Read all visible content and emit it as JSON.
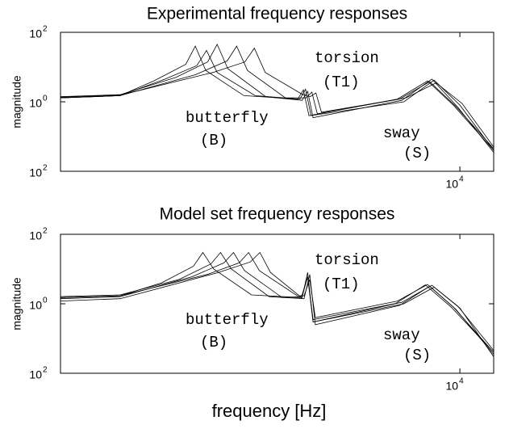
{
  "chart_data": [
    {
      "type": "line",
      "title": "Experimental frequency responses",
      "ylabel": "magnitude",
      "log_x": true,
      "log_y": true,
      "grid": false,
      "xlim": [
        1160,
        12000
      ],
      "ylim": [
        0.01,
        100
      ],
      "xticks": [
        {
          "value": 10000,
          "label": "10",
          "exponent": "4"
        }
      ],
      "yticks": [
        {
          "value": 100,
          "label": "10",
          "exponent": "2"
        },
        {
          "value": 1,
          "label": "10",
          "exponent": "0"
        },
        {
          "value": 0.01,
          "label": "10",
          "exponent": "2"
        }
      ],
      "annotations": [
        {
          "text": "torsion"
        },
        {
          "text": "(T1)"
        },
        {
          "text": "butterfly"
        },
        {
          "text": "(B)"
        },
        {
          "text": "sway"
        },
        {
          "text": "(S)"
        }
      ],
      "series": [
        {
          "color": "#000",
          "x": [
            1160,
            1600,
            1920,
            2280,
            2400,
            2540,
            3120,
            4170,
            4300,
            4430,
            7140,
            8400,
            9660,
            12000
          ],
          "values": [
            1.3,
            1.5,
            4,
            12,
            40,
            8,
            1.5,
            1.2,
            2.2,
            0.4,
            1.2,
            4,
            0.8,
            0.04
          ]
        },
        {
          "color": "#000",
          "x": [
            1160,
            1600,
            2160,
            2565,
            2700,
            2860,
            3510,
            4270,
            4400,
            4530,
            7310,
            8600,
            9890,
            12000
          ],
          "values": [
            1.4,
            1.6,
            5,
            14,
            45,
            9,
            1.4,
            1.1,
            2,
            0.35,
            1.1,
            4.5,
            0.7,
            0.035
          ]
        },
        {
          "color": "#000",
          "x": [
            1160,
            1600,
            2400,
            2850,
            3000,
            3180,
            3900,
            4365,
            4500,
            4635,
            7480,
            8800,
            10120,
            12000
          ],
          "values": [
            1.3,
            1.5,
            6,
            15,
            40,
            8,
            1.3,
            1.3,
            1.9,
            0.45,
            1.3,
            3.5,
            0.9,
            0.05
          ]
        },
        {
          "color": "#000",
          "x": [
            1160,
            1600,
            2640,
            3135,
            3300,
            3500,
            4290,
            4460,
            4600,
            4740,
            7225,
            8500,
            9775,
            12000
          ],
          "values": [
            1.35,
            1.55,
            7,
            14,
            35,
            7,
            1.6,
            1.4,
            1.8,
            0.5,
            1.2,
            3.8,
            0.75,
            0.045
          ]
        },
        {
          "color": "#000",
          "x": [
            1160,
            1600,
            2040,
            2420,
            2550,
            2700,
            3315,
            4220,
            4350,
            4480,
            7395,
            8700,
            10005,
            12000
          ],
          "values": [
            1.3,
            1.5,
            4.5,
            11,
            30,
            7,
            1.5,
            1.2,
            2.3,
            0.4,
            1,
            4.2,
            0.8,
            0.04
          ]
        }
      ]
    },
    {
      "type": "line",
      "title": "Model set frequency responses",
      "ylabel": "magnitude",
      "xlabel": "frequency [Hz]",
      "log_x": true,
      "log_y": true,
      "grid": false,
      "xlim": [
        1160,
        12000
      ],
      "ylim": [
        0.01,
        100
      ],
      "xticks": [
        {
          "value": 10000,
          "label": "10",
          "exponent": "4"
        }
      ],
      "yticks": [
        {
          "value": 100,
          "label": "10",
          "exponent": "2"
        },
        {
          "value": 1,
          "label": "10",
          "exponent": "0"
        },
        {
          "value": 0.01,
          "label": "10",
          "exponent": "2"
        }
      ],
      "annotations": [
        {
          "text": "torsion"
        },
        {
          "text": "(T1)"
        },
        {
          "text": "butterfly"
        },
        {
          "text": "(B)"
        },
        {
          "text": "sway"
        },
        {
          "text": "(S)"
        }
      ],
      "series": [
        {
          "color": "#000",
          "x": [
            1160,
            1600,
            2000,
            2375,
            2500,
            2650,
            3250,
            4270,
            4400,
            4530,
            7055,
            8300,
            9545,
            12000
          ],
          "values": [
            1.5,
            1.7,
            4,
            12,
            30,
            10,
            1.8,
            1.5,
            8,
            0.3,
            1,
            3.5,
            0.8,
            0.04
          ]
        },
        {
          "color": "#000",
          "x": [
            1160,
            1600,
            2200,
            2610,
            2750,
            2915,
            3575,
            4315,
            4450,
            4585,
            7225,
            8500,
            9775,
            12000
          ],
          "values": [
            1.6,
            1.8,
            5,
            14,
            30,
            10,
            1.6,
            1.4,
            7,
            0.25,
            0.9,
            3.2,
            0.7,
            0.035
          ]
        },
        {
          "color": "#000",
          "x": [
            1160,
            1600,
            2360,
            2800,
            2950,
            3130,
            3835,
            4270,
            4400,
            4530,
            7310,
            8600,
            9890,
            12000
          ],
          "values": [
            1.4,
            1.6,
            6,
            15,
            30,
            9,
            1.5,
            1.6,
            6,
            0.35,
            1.1,
            3.4,
            0.85,
            0.045
          ]
        },
        {
          "color": "#000",
          "x": [
            1160,
            1600,
            2560,
            3040,
            3200,
            3390,
            4160,
            4315,
            4450,
            4585,
            7140,
            8400,
            9660,
            12000
          ],
          "values": [
            1.5,
            1.7,
            7,
            15,
            30,
            9,
            1.7,
            1.7,
            5,
            0.4,
            1.2,
            3.6,
            0.8,
            0.04
          ]
        },
        {
          "color": "#000",
          "x": [
            1160,
            1600,
            2720,
            3230,
            3400,
            3600,
            4230,
            4270,
            4400,
            4530,
            7395,
            8700,
            10005,
            12000
          ],
          "values": [
            1.2,
            1.4,
            8,
            16,
            30,
            8,
            1.6,
            1.8,
            6,
            0.3,
            1,
            3,
            0.75,
            0.03
          ]
        }
      ]
    }
  ]
}
